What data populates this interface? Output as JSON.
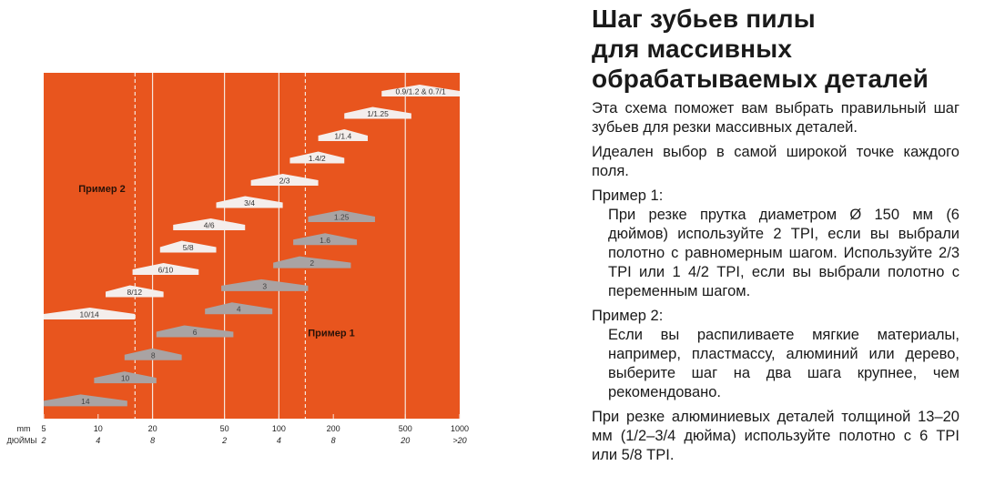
{
  "chart_data": {
    "type": "diagram",
    "background_color": "#e8551e",
    "x_axis": {
      "mm_label": "mm",
      "inch_label": "ДЮЙМЫ",
      "ticks": [
        {
          "mm": 5,
          "label": "5",
          "inch": "2"
        },
        {
          "mm": 10,
          "label": "10",
          "inch": "4"
        },
        {
          "mm": 20,
          "label": "20",
          "inch": "8"
        },
        {
          "mm": 50,
          "label": "50",
          "inch": "2"
        },
        {
          "mm": 100,
          "label": "100",
          "inch": "4"
        },
        {
          "mm": 200,
          "label": "200",
          "inch": "8"
        },
        {
          "mm": 500,
          "label": "500",
          "inch": "20"
        },
        {
          "mm": 1000,
          "label": "1000",
          "inch": ">20"
        }
      ]
    },
    "vertical_lines": [
      {
        "mm": 16,
        "style": "dashed"
      },
      {
        "mm": 20,
        "style": "solid"
      },
      {
        "mm": 50,
        "style": "solid"
      },
      {
        "mm": 100,
        "style": "solid"
      },
      {
        "mm": 140,
        "style": "dashed"
      },
      {
        "mm": 500,
        "style": "solid"
      }
    ],
    "white_series_color": "#f4eeec",
    "grey_series_color": "#a9a3a3",
    "white_series": [
      {
        "label": "0.9/1.2 & 0.7/1",
        "from_mm": 370,
        "to_mm": 1000,
        "peak_mm": 600
      },
      {
        "label": "1/1.25",
        "from_mm": 230,
        "to_mm": 540,
        "peak_mm": 330
      },
      {
        "label": "1/1.4",
        "from_mm": 165,
        "to_mm": 310,
        "peak_mm": 230
      },
      {
        "label": "1.4/2",
        "from_mm": 115,
        "to_mm": 230,
        "peak_mm": 165
      },
      {
        "label": "2/3",
        "from_mm": 70,
        "to_mm": 165,
        "peak_mm": 105
      },
      {
        "label": "3/4",
        "from_mm": 45,
        "to_mm": 105,
        "peak_mm": 65
      },
      {
        "label": "4/6",
        "from_mm": 26,
        "to_mm": 65,
        "peak_mm": 42
      },
      {
        "label": "5/8",
        "from_mm": 22,
        "to_mm": 45,
        "peak_mm": 29
      },
      {
        "label": "6/10",
        "from_mm": 15.5,
        "to_mm": 36,
        "peak_mm": 23
      },
      {
        "label": "8/12",
        "from_mm": 11,
        "to_mm": 23,
        "peak_mm": 15
      },
      {
        "label": "10/14",
        "from_mm": 5,
        "to_mm": 16,
        "peak_mm": 9
      }
    ],
    "grey_series": [
      {
        "label": "1.25",
        "from_mm": 145,
        "to_mm": 340,
        "peak_mm": 220
      },
      {
        "label": "1.6",
        "from_mm": 120,
        "to_mm": 270,
        "peak_mm": 180
      },
      {
        "label": "2",
        "from_mm": 93,
        "to_mm": 250,
        "peak_mm": 130
      },
      {
        "label": "3",
        "from_mm": 48,
        "to_mm": 145,
        "peak_mm": 80
      },
      {
        "label": "4",
        "from_mm": 39,
        "to_mm": 92,
        "peak_mm": 55
      },
      {
        "label": "6",
        "from_mm": 21,
        "to_mm": 56,
        "peak_mm": 30
      },
      {
        "label": "8",
        "from_mm": 14,
        "to_mm": 29,
        "peak_mm": 20
      },
      {
        "label": "10",
        "from_mm": 9.5,
        "to_mm": 21,
        "peak_mm": 14
      },
      {
        "label": "14",
        "from_mm": 5,
        "to_mm": 14.5,
        "peak_mm": 8
      }
    ],
    "annotations": [
      {
        "text": "Пример 2",
        "mm": 10.5,
        "row": "2/3"
      },
      {
        "text": "Пример 1",
        "mm": 195,
        "row": "6"
      }
    ]
  },
  "text": {
    "title_lines": [
      "Шаг зубьев пилы",
      "для массивных",
      "обрабатываемых деталей"
    ],
    "intro": "Эта схема поможет вам выбрать правильный шаг зубьев для резки массивных деталей.",
    "ideal": "Идеален выбор в самой широкой точке каждого поля.",
    "example1_label": "Пример 1:",
    "example1_text": "При резке прутка диаметром Ø 150 мм (6 дюймов) используйте 2 TPI, если вы выбрали полотно с равномерным шагом. Используйте 2/3 TPI или 1 4/2 TPI, если вы выбрали полотно с переменным шагом.",
    "example2_label": "Пример 2:",
    "example2_text": "Если вы распиливаете мягкие материалы, например, пластмассу, алюминий или дерево, выберите шаг на два шага крупнее, чем рекомендовано.",
    "aluminium": "При резке алюминиевых деталей толщиной 13–20 мм (1/2–3/4 дюйма) используйте полотно с 6 TPI или 5/8 TPI."
  }
}
